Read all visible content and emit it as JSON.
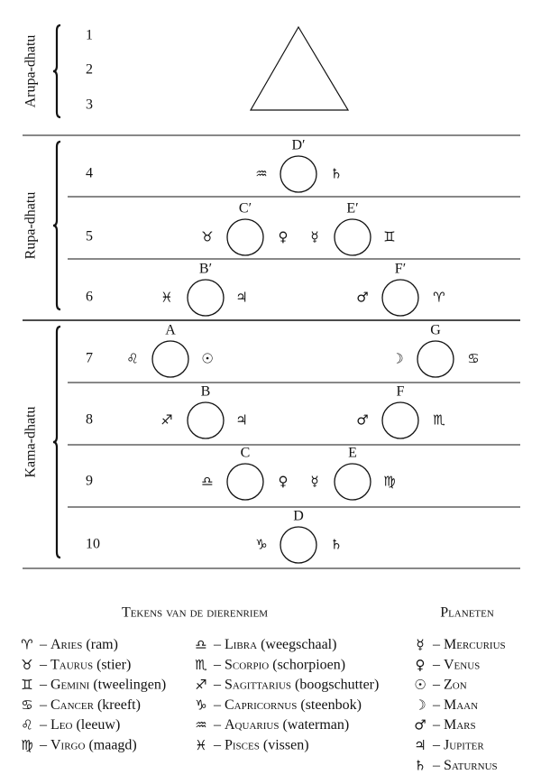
{
  "sections": [
    {
      "label": "Arupa-dhatu",
      "rows": [
        {
          "number": "1",
          "items": []
        },
        {
          "number": "2",
          "items": []
        },
        {
          "number": "3",
          "items": []
        }
      ]
    },
    {
      "label": "Rupa-dhatu",
      "rows": [
        {
          "number": "4",
          "items": [
            {
              "symbol": "♒"
            },
            {
              "globe": "D′"
            },
            {
              "symbol": "♄"
            }
          ]
        },
        {
          "number": "5",
          "items": [
            {
              "symbol": "♉"
            },
            {
              "globe": "C′"
            },
            {
              "symbol": "♀"
            },
            {
              "symbol": "☿"
            },
            {
              "globe": "E′"
            },
            {
              "symbol": "♊"
            }
          ]
        },
        {
          "number": "6",
          "items": [
            {
              "symbol": "♓"
            },
            {
              "globe": "B′"
            },
            {
              "symbol": "♃"
            },
            {
              "symbol": "♂"
            },
            {
              "globe": "F′"
            },
            {
              "symbol": "♈"
            }
          ]
        }
      ]
    },
    {
      "label": "Kama-dhatu",
      "rows": [
        {
          "number": "7",
          "items": [
            {
              "symbol": "♌"
            },
            {
              "globe": "A"
            },
            {
              "symbol": "☉"
            },
            {
              "symbol": "☽"
            },
            {
              "globe": "G"
            },
            {
              "symbol": "♋"
            }
          ]
        },
        {
          "number": "8",
          "items": [
            {
              "symbol": "♐"
            },
            {
              "globe": "B"
            },
            {
              "symbol": "♃"
            },
            {
              "symbol": "♂"
            },
            {
              "globe": "F"
            },
            {
              "symbol": "♏"
            }
          ]
        },
        {
          "number": "9",
          "items": [
            {
              "symbol": "♎"
            },
            {
              "globe": "C"
            },
            {
              "symbol": "♀"
            },
            {
              "symbol": "☿"
            },
            {
              "globe": "E"
            },
            {
              "symbol": "♍"
            }
          ]
        },
        {
          "number": "10",
          "items": [
            {
              "symbol": "♑"
            },
            {
              "globe": "D"
            },
            {
              "symbol": "♄"
            }
          ]
        }
      ]
    }
  ],
  "legend": {
    "separator": "–",
    "signs_title": "Tekens van de dierenriem",
    "signs": [
      {
        "symbol": "♈",
        "name": "Aries",
        "note": "(ram)"
      },
      {
        "symbol": "♉",
        "name": "Taurus",
        "note": "(stier)"
      },
      {
        "symbol": "♊",
        "name": "Gemini",
        "note": "(tweelingen)"
      },
      {
        "symbol": "♋",
        "name": "Cancer",
        "note": "(kreeft)"
      },
      {
        "symbol": "♌",
        "name": "Leo",
        "note": "(leeuw)"
      },
      {
        "symbol": "♍",
        "name": "Virgo",
        "note": "(maagd)"
      },
      {
        "symbol": "♎",
        "name": "Libra",
        "note": "(weegschaal)"
      },
      {
        "symbol": "♏",
        "name": "Scorpio",
        "note": "(schorpioen)"
      },
      {
        "symbol": "♐",
        "name": "Sagittarius",
        "note": "(boogschutter)"
      },
      {
        "symbol": "♑",
        "name": "Capricornus",
        "note": "(steenbok)"
      },
      {
        "symbol": "♒",
        "name": "Aquarius",
        "note": "(waterman)"
      },
      {
        "symbol": "♓",
        "name": "Pisces",
        "note": "(vissen)"
      }
    ],
    "planets_title": "Planeten",
    "planets": [
      {
        "symbol": "☿",
        "name": "Mercurius"
      },
      {
        "symbol": "♀",
        "name": "Venus"
      },
      {
        "symbol": "☉",
        "name": "Zon"
      },
      {
        "symbol": "☽",
        "name": "Maan"
      },
      {
        "symbol": "♂",
        "name": "Mars"
      },
      {
        "symbol": "♃",
        "name": "Jupiter"
      },
      {
        "symbol": "♄",
        "name": "Saturnus"
      }
    ]
  }
}
